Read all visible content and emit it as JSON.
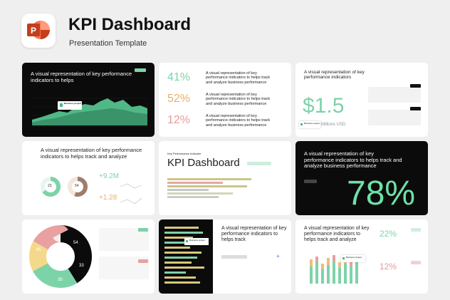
{
  "header": {
    "title": "KPI Dashboard",
    "subtitle": "Presentation Template",
    "app_icon": "powerpoint-icon",
    "app_letter": "P"
  },
  "colors": {
    "background": "#efefef",
    "mint": "#7dd3a8",
    "orange": "#e8b06a",
    "pink": "#e89b9b",
    "dark": "#0b0b0b",
    "brand_red": "#d24726"
  },
  "common": {
    "kpi_text_short": "A visual representation of key performance indicators",
    "kpi_text_helps": "A visual representation of key performance indicators to helps",
    "kpi_text_track": "A visual representation of key performance indicators to helps track and analyze",
    "kpi_text_full": "A visual representation of key performance indicators to helps track and analyze business performance",
    "kpi_text_helps_track": "A visual representation of key performance indicators to helps track",
    "business_project": "Business project"
  },
  "slide2": {
    "rows": [
      {
        "value": "41%",
        "color": "mint"
      },
      {
        "value": "52%",
        "color": "orange"
      },
      {
        "value": "12%",
        "color": "pink"
      }
    ]
  },
  "slide3": {
    "big_value": "$1.5",
    "unit": "Millions USD"
  },
  "slide5": {
    "donut_a": "23",
    "donut_b": "54",
    "stat_a": "+9.2M",
    "stat_b": "+1.28"
  },
  "slide6": {
    "label": "Key Performance Indicator",
    "title": "KPI Dashboard"
  },
  "slide7": {
    "big_value": "78%"
  },
  "slide8": {
    "segments": [
      {
        "value": 85,
        "label": "85",
        "color": "#0b0b0b"
      },
      {
        "value": 54,
        "label": "54",
        "color": "#7dd3a8"
      },
      {
        "value": 33,
        "label": "33",
        "color": "#f4d98a"
      },
      {
        "value": 35,
        "label": "35",
        "color": "#e8a0a0"
      }
    ]
  },
  "slide12": {
    "stat_a": "22%",
    "stat_b": "12%"
  }
}
